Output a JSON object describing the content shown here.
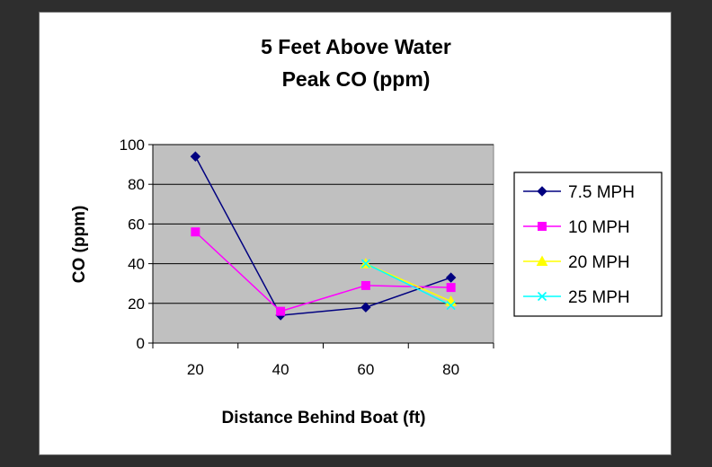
{
  "chart_data": {
    "type": "line",
    "title_lines": [
      "5 Feet Above Water",
      "Peak CO (ppm)"
    ],
    "xlabel": "Distance Behind Boat (ft)",
    "ylabel": "CO (ppm)",
    "categories": [
      "20",
      "40",
      "60",
      "80"
    ],
    "ylim": [
      0,
      100
    ],
    "yticks": [
      "0",
      "20",
      "40",
      "60",
      "80",
      "100"
    ],
    "grid": true,
    "legend_position": "right",
    "series": [
      {
        "name": "7.5 MPH",
        "color": "#000080",
        "marker": "diamond",
        "values": [
          94,
          14,
          18,
          33
        ]
      },
      {
        "name": "10 MPH",
        "color": "#ff00ff",
        "marker": "square",
        "values": [
          56,
          16,
          29,
          28
        ]
      },
      {
        "name": "20 MPH",
        "color": "#ffff00",
        "marker": "triangle",
        "values": [
          null,
          null,
          40,
          21
        ]
      },
      {
        "name": "25 MPH",
        "color": "#00ffff",
        "marker": "x",
        "values": [
          null,
          null,
          40,
          19
        ]
      }
    ]
  },
  "colors": {
    "background": "#2e2e2e",
    "panel": "#ffffff",
    "plot_area": "#c0c0c0"
  }
}
